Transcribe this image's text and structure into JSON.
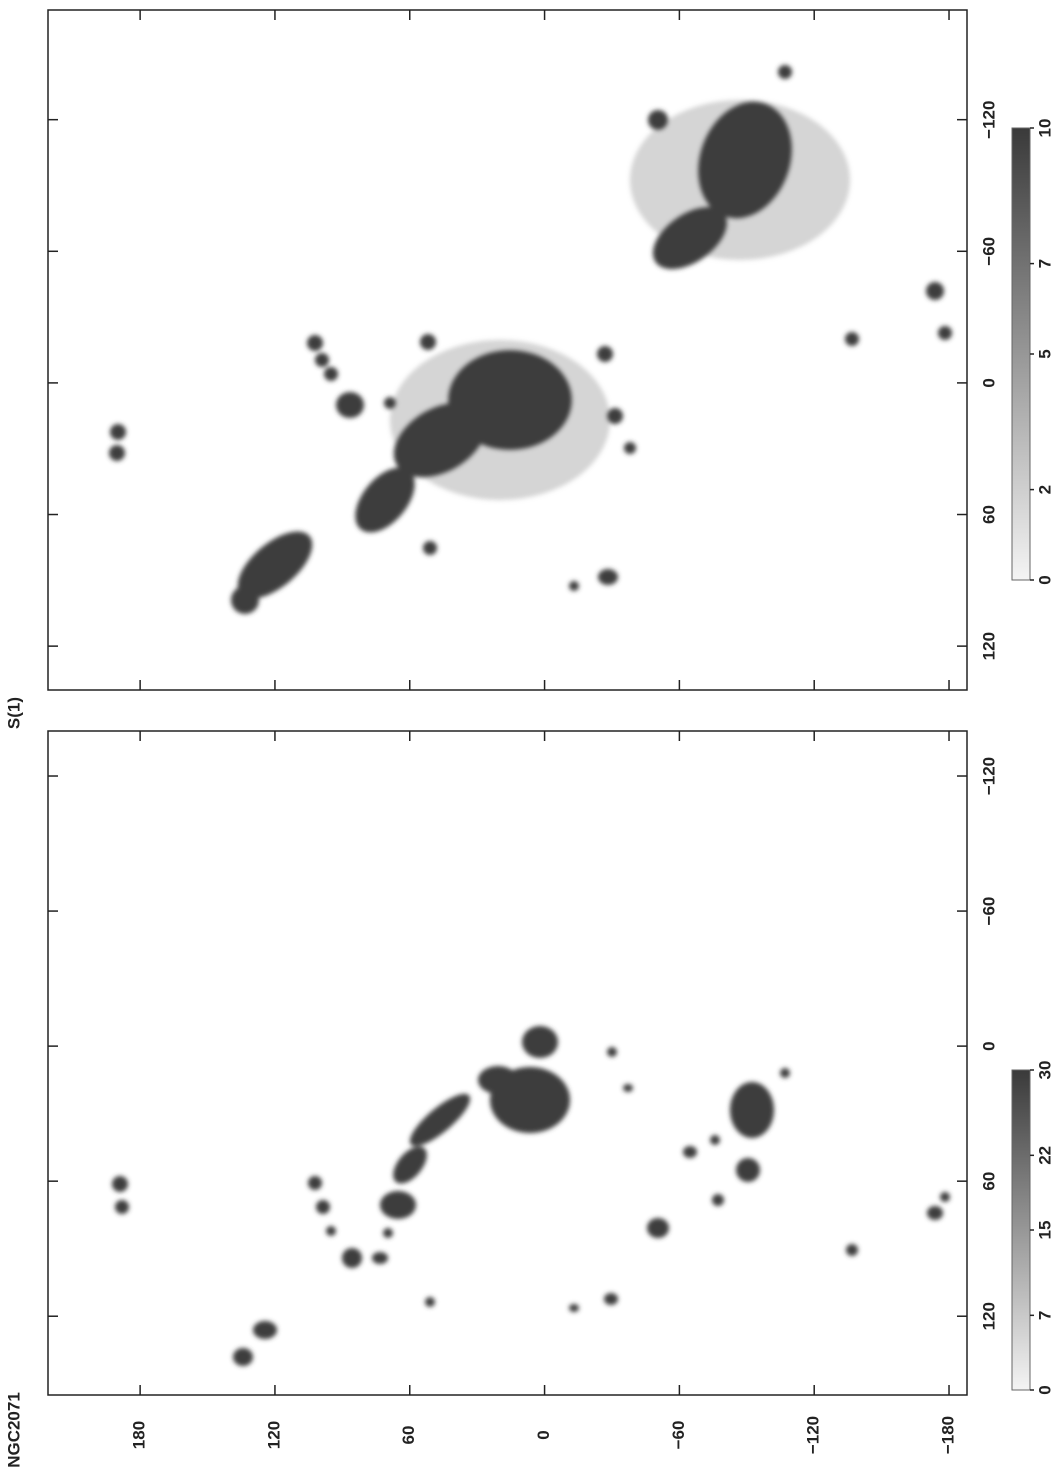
{
  "chart_data": [
    {
      "type": "image",
      "title": "NGC2071",
      "xlim": [
        221,
        -188
      ],
      "xticks": [
        180,
        120,
        60,
        0,
        {
          "value": -60,
          "label": "−60"
        },
        {
          "value": -120,
          "label": "−120"
        },
        {
          "value": -180,
          "label": "−180"
        }
      ],
      "ylim": [
        -140,
        155
      ],
      "yticks": [
        {
          "value": -120,
          "label": "−120"
        },
        {
          "value": -60,
          "label": "−60"
        },
        0,
        60,
        120
      ],
      "colorbar": {
        "lim": [
          0,
          30
        ],
        "ticks": [
          0,
          7,
          15,
          22,
          30
        ]
      }
    },
    {
      "type": "image",
      "title": "S(1)",
      "xlim": [
        221,
        -188
      ],
      "ylim": [
        -170,
        140
      ],
      "yticks": [
        {
          "value": -120,
          "label": "−120"
        },
        {
          "value": -60,
          "label": "−60"
        },
        0,
        60,
        120
      ],
      "colorbar": {
        "lim": [
          0,
          10
        ],
        "ticks": [
          0,
          2,
          5,
          7,
          10
        ]
      }
    }
  ]
}
